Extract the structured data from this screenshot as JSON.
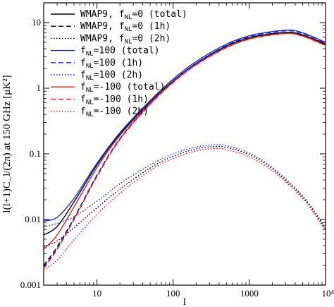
{
  "chart_data": {
    "type": "line",
    "xscale": "log",
    "yscale": "log",
    "xlim": [
      2,
      10000
    ],
    "ylim": [
      0.001,
      20
    ],
    "xlabel": "l",
    "ylabel": "l(l+1)C_l/(2π) at 150 GHz [μK²]",
    "legend_position": "top-left",
    "grid": false,
    "x_ticks": [
      {
        "value": 10,
        "label": "10"
      },
      {
        "value": 100,
        "label": "100"
      },
      {
        "value": 1000,
        "label": "1000"
      },
      {
        "value": 10000,
        "label": "10⁴"
      }
    ],
    "y_ticks": [
      {
        "value": 0.001,
        "label": "0.001"
      },
      {
        "value": 0.01,
        "label": "0.01"
      },
      {
        "value": 0.1,
        "label": "0.1"
      },
      {
        "value": 1,
        "label": "1"
      },
      {
        "value": 10,
        "label": "10"
      }
    ],
    "series": [
      {
        "name": "WMAP9, f_NL=0 (total)",
        "legend_main": "WMAP9, f",
        "legend_sub": "NL",
        "legend_rest": "=0 (total)",
        "color": "#000000",
        "dash": "solid",
        "points": [
          [
            2,
            0.0058
          ],
          [
            3,
            0.0078
          ],
          [
            5,
            0.0185
          ],
          [
            10,
            0.068
          ],
          [
            20,
            0.2
          ],
          [
            50,
            0.62
          ],
          [
            100,
            1.3
          ],
          [
            200,
            2.4
          ],
          [
            500,
            4.4
          ],
          [
            1000,
            5.9
          ],
          [
            2000,
            6.8
          ],
          [
            3500,
            7.1
          ],
          [
            5000,
            6.5
          ],
          [
            7000,
            5.6
          ],
          [
            10000,
            4.7
          ]
        ]
      },
      {
        "name": "WMAP9, f_NL=0 (1h)",
        "legend_main": "WMAP9, f",
        "legend_sub": "NL",
        "legend_rest": "=0 (1h)",
        "color": "#000000",
        "dash": "dashed",
        "points": [
          [
            2,
            0.002
          ],
          [
            3,
            0.0038
          ],
          [
            5,
            0.0105
          ],
          [
            10,
            0.047
          ],
          [
            20,
            0.17
          ],
          [
            50,
            0.58
          ],
          [
            100,
            1.25
          ],
          [
            200,
            2.35
          ],
          [
            500,
            4.35
          ],
          [
            1000,
            5.85
          ],
          [
            2000,
            6.75
          ],
          [
            3500,
            7.05
          ],
          [
            5000,
            6.45
          ],
          [
            7000,
            5.55
          ],
          [
            10000,
            4.65
          ]
        ]
      },
      {
        "name": "WMAP9, f_NL=0 (2h)",
        "legend_main": "WMAP9, f",
        "legend_sub": "NL",
        "legend_rest": "=0 (2h)",
        "color": "#000000",
        "dash": "dotted",
        "points": [
          [
            2,
            0.0038
          ],
          [
            3,
            0.0047
          ],
          [
            5,
            0.0075
          ],
          [
            10,
            0.015
          ],
          [
            20,
            0.029
          ],
          [
            50,
            0.061
          ],
          [
            100,
            0.092
          ],
          [
            200,
            0.119
          ],
          [
            350,
            0.129
          ],
          [
            500,
            0.125
          ],
          [
            1000,
            0.097
          ],
          [
            2000,
            0.059
          ],
          [
            5000,
            0.022
          ],
          [
            10000,
            0.0072
          ]
        ]
      },
      {
        "name": "f_NL=100 (total)",
        "legend_main": "f",
        "legend_sub": "NL",
        "legend_rest": "=100 (total)",
        "color": "#1f2fd4",
        "dash": "solid",
        "points": [
          [
            2,
            0.0095
          ],
          [
            3,
            0.0108
          ],
          [
            5,
            0.021
          ],
          [
            10,
            0.072
          ],
          [
            20,
            0.21
          ],
          [
            50,
            0.65
          ],
          [
            100,
            1.38
          ],
          [
            200,
            2.55
          ],
          [
            500,
            4.7
          ],
          [
            1000,
            6.3
          ],
          [
            2000,
            7.3
          ],
          [
            3500,
            7.7
          ],
          [
            5000,
            7.0
          ],
          [
            7000,
            6.0
          ],
          [
            10000,
            5.0
          ]
        ]
      },
      {
        "name": "f_NL=100 (1h)",
        "legend_main": "f",
        "legend_sub": "NL",
        "legend_rest": "=100 (1h)",
        "color": "#1f2fd4",
        "dash": "dashed",
        "points": [
          [
            2,
            0.0019
          ],
          [
            3,
            0.0036
          ],
          [
            5,
            0.0102
          ],
          [
            10,
            0.046
          ],
          [
            20,
            0.168
          ],
          [
            50,
            0.58
          ],
          [
            100,
            1.27
          ],
          [
            200,
            2.4
          ],
          [
            500,
            4.5
          ],
          [
            1000,
            6.1
          ],
          [
            2000,
            7.1
          ],
          [
            3500,
            7.5
          ],
          [
            5000,
            6.8
          ],
          [
            7000,
            5.85
          ],
          [
            10000,
            4.85
          ]
        ]
      },
      {
        "name": "f_NL=100 (2h)",
        "legend_main": "f",
        "legend_sub": "NL",
        "legend_rest": "=100 (2h)",
        "color": "#1f2fd4",
        "dash": "dotted",
        "points": [
          [
            2,
            0.0077
          ],
          [
            3,
            0.0087
          ],
          [
            5,
            0.011
          ],
          [
            10,
            0.019
          ],
          [
            20,
            0.035
          ],
          [
            50,
            0.068
          ],
          [
            100,
            0.1
          ],
          [
            200,
            0.127
          ],
          [
            350,
            0.137
          ],
          [
            500,
            0.133
          ],
          [
            1000,
            0.103
          ],
          [
            2000,
            0.062
          ],
          [
            5000,
            0.023
          ],
          [
            10000,
            0.0075
          ]
        ]
      },
      {
        "name": "f_NL=-100 (total)",
        "legend_main": "f",
        "legend_sub": "NL",
        "legend_rest": "=-100 (total)",
        "color": "#e41a1c",
        "dash": "solid",
        "points": [
          [
            2,
            0.0035
          ],
          [
            3,
            0.0058
          ],
          [
            5,
            0.0155
          ],
          [
            10,
            0.062
          ],
          [
            20,
            0.19
          ],
          [
            50,
            0.6
          ],
          [
            100,
            1.25
          ],
          [
            200,
            2.3
          ],
          [
            500,
            4.2
          ],
          [
            1000,
            5.65
          ],
          [
            2000,
            6.55
          ],
          [
            3500,
            6.85
          ],
          [
            5000,
            6.25
          ],
          [
            7000,
            5.4
          ],
          [
            10000,
            4.5
          ]
        ]
      },
      {
        "name": "f_NL=-100 (1h)",
        "legend_main": "f",
        "legend_sub": "NL",
        "legend_rest": "=-100 (1h)",
        "color": "#e41a1c",
        "dash": "dashed",
        "points": [
          [
            2,
            0.0018
          ],
          [
            3,
            0.0035
          ],
          [
            5,
            0.01
          ],
          [
            10,
            0.045
          ],
          [
            20,
            0.165
          ],
          [
            50,
            0.57
          ],
          [
            100,
            1.22
          ],
          [
            200,
            2.27
          ],
          [
            500,
            4.15
          ],
          [
            1000,
            5.6
          ],
          [
            2000,
            6.5
          ],
          [
            3500,
            6.8
          ],
          [
            5000,
            6.2
          ],
          [
            7000,
            5.35
          ],
          [
            10000,
            4.45
          ]
        ]
      },
      {
        "name": "f_NL=-100 (2h)",
        "legend_main": "f",
        "legend_sub": "NL",
        "legend_rest": "=-100 (2h)",
        "color": "#e41a1c",
        "dash": "dotted",
        "points": [
          [
            2,
            0.0017
          ],
          [
            3,
            0.0024
          ],
          [
            5,
            0.0049
          ],
          [
            10,
            0.012
          ],
          [
            20,
            0.025
          ],
          [
            50,
            0.056
          ],
          [
            100,
            0.085
          ],
          [
            200,
            0.111
          ],
          [
            350,
            0.12
          ],
          [
            500,
            0.116
          ],
          [
            1000,
            0.09
          ],
          [
            2000,
            0.055
          ],
          [
            5000,
            0.021
          ],
          [
            10000,
            0.0068
          ]
        ]
      }
    ]
  }
}
